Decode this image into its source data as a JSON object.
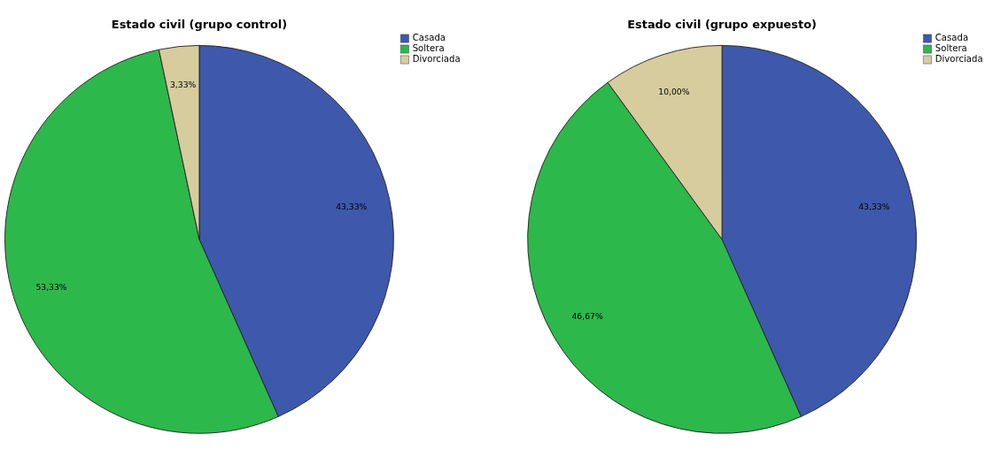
{
  "chart_data": [
    {
      "type": "pie",
      "title": "Estado civil (grupo control)",
      "categories": [
        "Casada",
        "Soltera",
        "Divorciada"
      ],
      "values": [
        43.33,
        53.33,
        3.33
      ],
      "colors": [
        "#3e58ab",
        "#2db84b",
        "#d6cc9e"
      ],
      "value_labels": [
        "43,33%",
        "53,33%",
        "3,33%"
      ],
      "legend": "top right"
    },
    {
      "type": "pie",
      "title": "Estado civil (grupo expuesto)",
      "categories": [
        "Casada",
        "Soltera",
        "Divorciada"
      ],
      "values": [
        43.33,
        46.67,
        10.0
      ],
      "colors": [
        "#3e58ab",
        "#2db84b",
        "#d6cc9e"
      ],
      "value_labels": [
        "43,33%",
        "46,67%",
        "10,00%"
      ],
      "legend": "top right"
    }
  ]
}
